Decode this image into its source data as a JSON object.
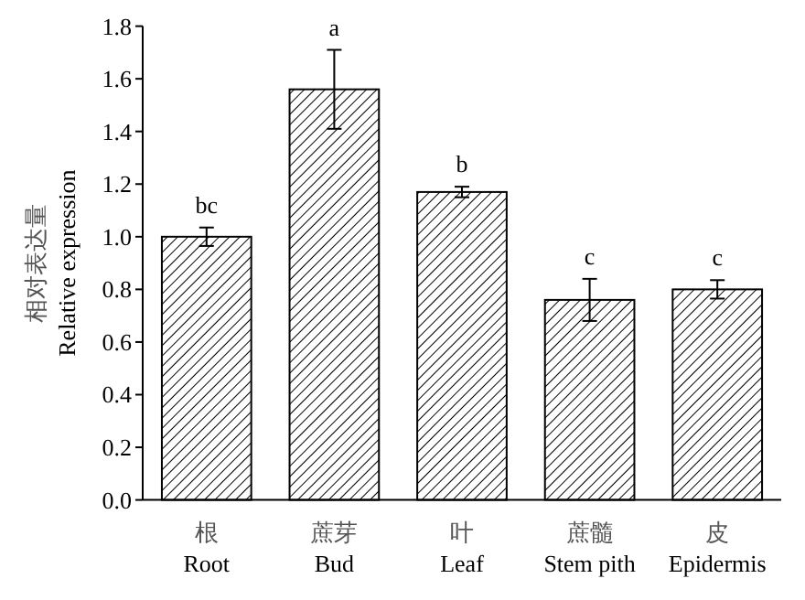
{
  "chart_data": {
    "type": "bar",
    "ylabel": "相对表达量\nRelative expression",
    "categories": [
      "根\nRoot",
      "蔗芽\nBud",
      "叶\nLeaf",
      "蔗髓\nStem pith",
      "皮\nEpidermis"
    ],
    "values": [
      1.0,
      1.56,
      1.17,
      0.76,
      0.8
    ],
    "errors": [
      0.035,
      0.15,
      0.02,
      0.08,
      0.035
    ],
    "color": "#000000",
    "ylim": [
      0,
      1.8
    ],
    "yticks": [
      {
        "value": 0,
        "label": "0.0"
      },
      {
        "value": 0.2,
        "label": "0.2"
      },
      {
        "value": 0.4,
        "label": "0.4"
      },
      {
        "value": 0.6,
        "label": "0.6"
      },
      {
        "value": 0.8,
        "label": "0.8"
      },
      {
        "value": 1.0,
        "label": "1.0"
      },
      {
        "value": 1.2,
        "label": "1.2"
      },
      {
        "value": 1.4,
        "label": "1.4"
      },
      {
        "value": 1.6,
        "label": "1.6"
      },
      {
        "value": 1.8,
        "label": "1.8"
      }
    ],
    "grid": false,
    "annotations": [
      {
        "text": "bc",
        "x": "根\nRoot",
        "y": 1.035
      },
      {
        "text": "a",
        "x": "蔗芽\nBud",
        "y": 1.71
      },
      {
        "text": "b",
        "x": "叶\nLeaf",
        "y": 1.19
      },
      {
        "text": "c",
        "x": "蔗髓\nStem pith",
        "y": 0.84
      },
      {
        "text": "c",
        "x": "皮\nEpidermis",
        "y": 0.835
      }
    ]
  }
}
